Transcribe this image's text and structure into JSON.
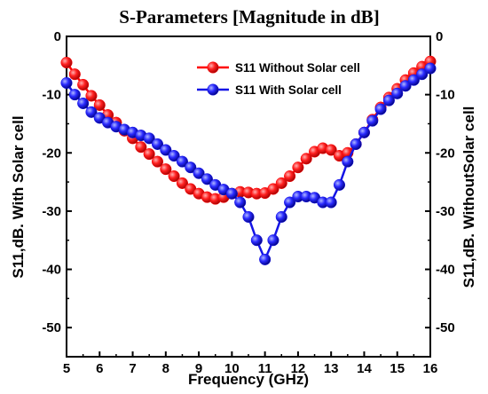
{
  "chart_data": {
    "type": "line",
    "title": "S-Parameters [Magnitude in dB]",
    "xlabel": "Frequency (GHz)",
    "ylabel_left": "S11,dB. With Solar cell",
    "ylabel_right": "S11,dB. WithoutSolar cell",
    "xlim": [
      5,
      16
    ],
    "ylim": [
      -55,
      0
    ],
    "x_ticks": [
      5,
      6,
      7,
      8,
      9,
      10,
      11,
      12,
      13,
      14,
      15,
      16
    ],
    "y_ticks": [
      0,
      -10,
      -20,
      -30,
      -40,
      -50
    ],
    "grid": false,
    "legend_position": "top-right",
    "series": [
      {
        "name": "S11 Without Solar cell",
        "color": "#ff0000",
        "x": [
          5.0,
          5.25,
          5.5,
          5.75,
          6.0,
          6.25,
          6.5,
          6.75,
          7.0,
          7.25,
          7.5,
          7.75,
          8.0,
          8.25,
          8.5,
          8.75,
          9.0,
          9.25,
          9.5,
          9.75,
          10.0,
          10.25,
          10.5,
          10.75,
          11.0,
          11.25,
          11.5,
          11.75,
          12.0,
          12.25,
          12.5,
          12.75,
          13.0,
          13.25,
          13.5,
          13.75,
          14.0,
          14.25,
          14.5,
          14.75,
          15.0,
          15.25,
          15.5,
          15.75,
          16.0
        ],
        "y": [
          -4.5,
          -6.5,
          -8.3,
          -10.2,
          -11.8,
          -13.5,
          -14.8,
          -16.2,
          -17.5,
          -19.0,
          -20.2,
          -21.5,
          -22.8,
          -24.0,
          -25.2,
          -26.2,
          -27.0,
          -27.6,
          -27.9,
          -27.6,
          -27.0,
          -26.7,
          -26.8,
          -27.0,
          -26.9,
          -26.2,
          -25.2,
          -24.0,
          -22.5,
          -21.0,
          -19.8,
          -19.2,
          -19.5,
          -20.5,
          -20.0,
          -18.5,
          -16.5,
          -14.3,
          -12.2,
          -10.5,
          -9.0,
          -7.5,
          -6.3,
          -5.2,
          -4.3
        ]
      },
      {
        "name": "S11 With Solar cell",
        "color": "#1414e6",
        "x": [
          5.0,
          5.25,
          5.5,
          5.75,
          6.0,
          6.25,
          6.5,
          6.75,
          7.0,
          7.25,
          7.5,
          7.75,
          8.0,
          8.25,
          8.5,
          8.75,
          9.0,
          9.25,
          9.5,
          9.75,
          10.0,
          10.25,
          10.5,
          10.75,
          11.0,
          11.25,
          11.5,
          11.75,
          12.0,
          12.25,
          12.5,
          12.75,
          13.0,
          13.25,
          13.5,
          13.75,
          14.0,
          14.25,
          14.5,
          14.75,
          15.0,
          15.25,
          15.5,
          15.75,
          16.0
        ],
        "y": [
          -8.0,
          -10.0,
          -11.5,
          -13.0,
          -14.0,
          -14.8,
          -15.5,
          -16.0,
          -16.5,
          -17.0,
          -17.5,
          -18.5,
          -19.5,
          -20.5,
          -21.5,
          -22.5,
          -23.5,
          -24.5,
          -25.5,
          -26.3,
          -27.0,
          -28.5,
          -31.0,
          -35.0,
          -38.3,
          -35.0,
          -31.0,
          -28.5,
          -27.5,
          -27.5,
          -27.7,
          -28.5,
          -28.5,
          -25.5,
          -21.5,
          -18.5,
          -16.5,
          -14.5,
          -12.5,
          -11.0,
          -9.8,
          -8.5,
          -7.5,
          -6.5,
          -5.5
        ]
      }
    ]
  }
}
